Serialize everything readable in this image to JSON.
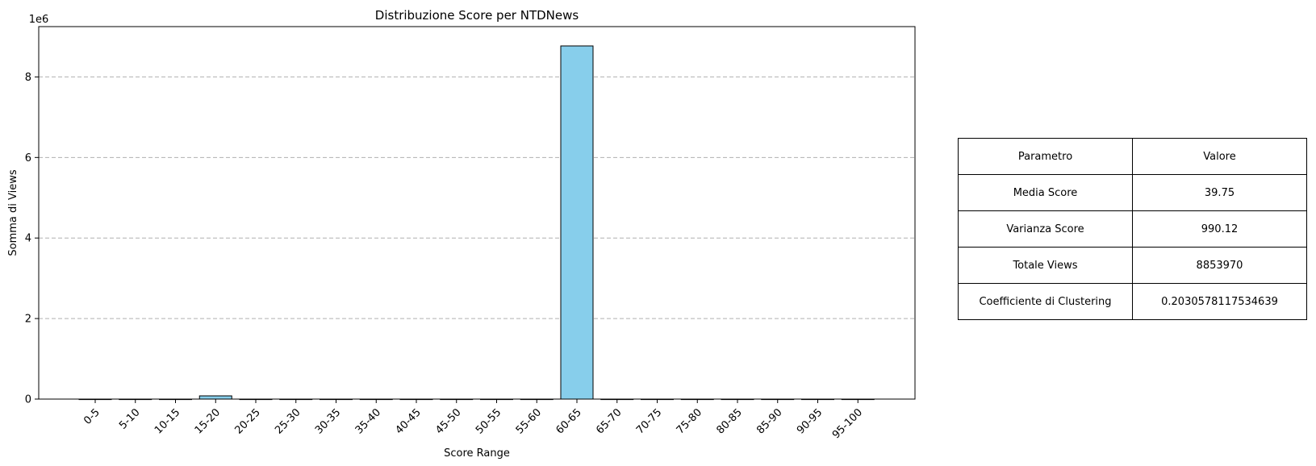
{
  "chart_data": {
    "type": "bar",
    "title": "Distribuzione Score per NTDNews",
    "xlabel": "Score Range",
    "ylabel": "Somma di Views",
    "offset_label": "1e6",
    "categories": [
      "0-5",
      "5-10",
      "10-15",
      "15-20",
      "20-25",
      "25-30",
      "30-35",
      "35-40",
      "40-45",
      "45-50",
      "50-55",
      "55-60",
      "60-65",
      "65-70",
      "70-75",
      "75-80",
      "80-85",
      "85-90",
      "90-95",
      "95-100"
    ],
    "values": [
      0,
      0,
      0,
      80000,
      0,
      0,
      0,
      0,
      0,
      0,
      0,
      0,
      8770000,
      0,
      0,
      0,
      0,
      0,
      0,
      0
    ],
    "ylim": [
      0,
      9250000
    ],
    "yticks": [
      0,
      2000000,
      4000000,
      6000000,
      8000000
    ],
    "ytick_labels": [
      "0",
      "2",
      "4",
      "6",
      "8"
    ],
    "grid": "y-dashed",
    "bar_color": "#87ceeb",
    "edge_color": "#000000"
  },
  "table": {
    "header": [
      "Parametro",
      "Valore"
    ],
    "rows": [
      [
        "Media Score",
        "39.75"
      ],
      [
        "Varianza Score",
        "990.12"
      ],
      [
        "Totale Views",
        "8853970"
      ],
      [
        "Coefficiente di Clustering",
        "0.2030578117534639"
      ]
    ]
  }
}
